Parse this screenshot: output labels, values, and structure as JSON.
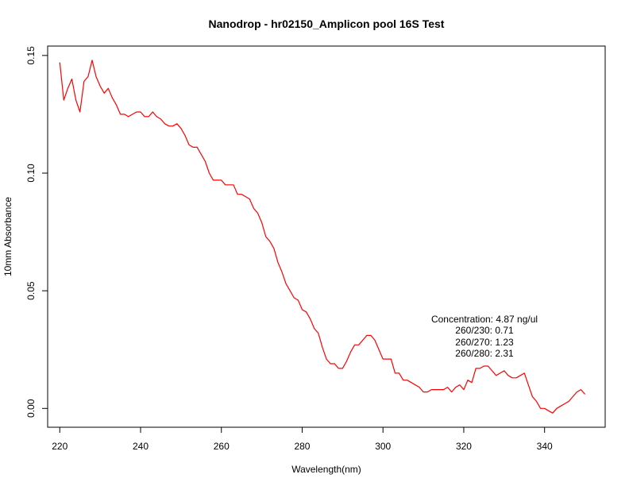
{
  "chart_data": {
    "type": "line",
    "title": "Nanodrop - hr02150_Amplicon pool 16S Test",
    "xlabel": "Wavelength(nm)",
    "ylabel": "10mm Absorbance",
    "xlim": [
      217,
      355
    ],
    "ylim": [
      -0.008,
      0.154
    ],
    "x_ticks": [
      220,
      240,
      260,
      280,
      300,
      320,
      340
    ],
    "y_ticks": [
      0.0,
      0.05,
      0.1,
      0.15
    ],
    "x_tick_labels": [
      "220",
      "240",
      "260",
      "280",
      "300",
      "320",
      "340"
    ],
    "y_tick_labels": [
      "0.00",
      "0.05",
      "0.10",
      "0.15"
    ],
    "grid": false,
    "series": [
      {
        "color": "#ff0000",
        "x": [
          220,
          221,
          222,
          223,
          224,
          225,
          226,
          227,
          228,
          229,
          230,
          231,
          232,
          233,
          234,
          235,
          236,
          237,
          238,
          239,
          240,
          241,
          242,
          243,
          244,
          245,
          246,
          247,
          248,
          249,
          250,
          251,
          252,
          253,
          254,
          255,
          256,
          257,
          258,
          259,
          260,
          261,
          262,
          263,
          264,
          265,
          266,
          267,
          268,
          269,
          270,
          271,
          272,
          273,
          274,
          275,
          276,
          277,
          278,
          279,
          280,
          281,
          282,
          283,
          284,
          285,
          286,
          287,
          288,
          289,
          290,
          291,
          292,
          293,
          294,
          295,
          296,
          297,
          298,
          299,
          300,
          301,
          302,
          303,
          304,
          305,
          306,
          307,
          308,
          309,
          310,
          311,
          312,
          313,
          314,
          315,
          316,
          317,
          318,
          319,
          320,
          321,
          322,
          323,
          324,
          325,
          326,
          327,
          328,
          329,
          330,
          331,
          332,
          333,
          334,
          335,
          336,
          337,
          338,
          339,
          340,
          341,
          342,
          343,
          344,
          345,
          346,
          347,
          348,
          349,
          350
        ],
        "y": [
          0.147,
          0.131,
          0.136,
          0.14,
          0.131,
          0.126,
          0.139,
          0.141,
          0.148,
          0.141,
          0.137,
          0.134,
          0.136,
          0.132,
          0.129,
          0.125,
          0.125,
          0.124,
          0.125,
          0.126,
          0.126,
          0.124,
          0.124,
          0.126,
          0.124,
          0.123,
          0.121,
          0.12,
          0.12,
          0.121,
          0.119,
          0.116,
          0.112,
          0.111,
          0.111,
          0.108,
          0.105,
          0.1,
          0.097,
          0.097,
          0.097,
          0.095,
          0.095,
          0.095,
          0.091,
          0.091,
          0.09,
          0.089,
          0.085,
          0.083,
          0.079,
          0.073,
          0.071,
          0.068,
          0.062,
          0.058,
          0.053,
          0.05,
          0.047,
          0.046,
          0.042,
          0.041,
          0.038,
          0.034,
          0.032,
          0.026,
          0.021,
          0.019,
          0.019,
          0.017,
          0.017,
          0.02,
          0.024,
          0.027,
          0.027,
          0.029,
          0.031,
          0.031,
          0.029,
          0.025,
          0.021,
          0.021,
          0.021,
          0.015,
          0.015,
          0.012,
          0.012,
          0.011,
          0.01,
          0.009,
          0.007,
          0.007,
          0.008,
          0.008,
          0.008,
          0.008,
          0.009,
          0.007,
          0.009,
          0.01,
          0.008,
          0.012,
          0.011,
          0.017,
          0.017,
          0.018,
          0.018,
          0.016,
          0.014,
          0.015,
          0.016,
          0.014,
          0.013,
          0.013,
          0.014,
          0.015,
          0.01,
          0.005,
          0.003,
          0.0,
          0.0,
          -0.001,
          -0.002,
          0.0,
          0.001,
          0.002,
          0.003,
          0.005,
          0.007,
          0.008,
          0.006
        ]
      }
    ],
    "annotations": [
      "Concentration: 4.87 ng/ul",
      "260/230: 0.71",
      "260/270: 1.23",
      "260/280: 2.31"
    ]
  }
}
